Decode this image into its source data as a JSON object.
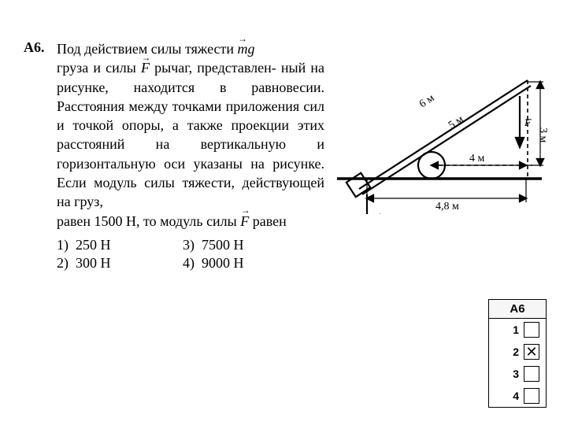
{
  "problem": {
    "label": "A6.",
    "line1": "Под действием силы тяжести ",
    "line1b": "груза и силы ",
    "line1c": " рычаг, представлен-",
    "lines_mid": "ный на рисунке, находится в равновесии. Расстояния между точками приложения сил и точкой опоры, а также проекции этих расстояний на вертикальную и горизонтальную оси указаны на рисунке. Если модуль силы тяжести, действующей на груз,",
    "line_end_a": "равен 1500 Н, то модуль силы ",
    "line_end_b": " равен"
  },
  "vectors": {
    "mg": "mg",
    "F": "F"
  },
  "options": [
    {
      "n": "1)",
      "v": "250 Н"
    },
    {
      "n": "2)",
      "v": "300 Н"
    },
    {
      "n": "3)",
      "v": "7500 Н"
    },
    {
      "n": "4)",
      "v": "9000 Н"
    }
  ],
  "diagram": {
    "beam_6m": "6 м",
    "beam_5m": "5 м",
    "horiz_4m": "4 м",
    "horiz_48m": "4,8 м",
    "vert_3m": "3 м",
    "F_label": "F",
    "mg_label": "mg",
    "stroke": "#000",
    "line_w": 2.2
  },
  "answer": {
    "header": "А6",
    "rows": [
      {
        "n": "1",
        "checked": false
      },
      {
        "n": "2",
        "checked": true
      },
      {
        "n": "3",
        "checked": false
      },
      {
        "n": "4",
        "checked": false
      }
    ]
  }
}
